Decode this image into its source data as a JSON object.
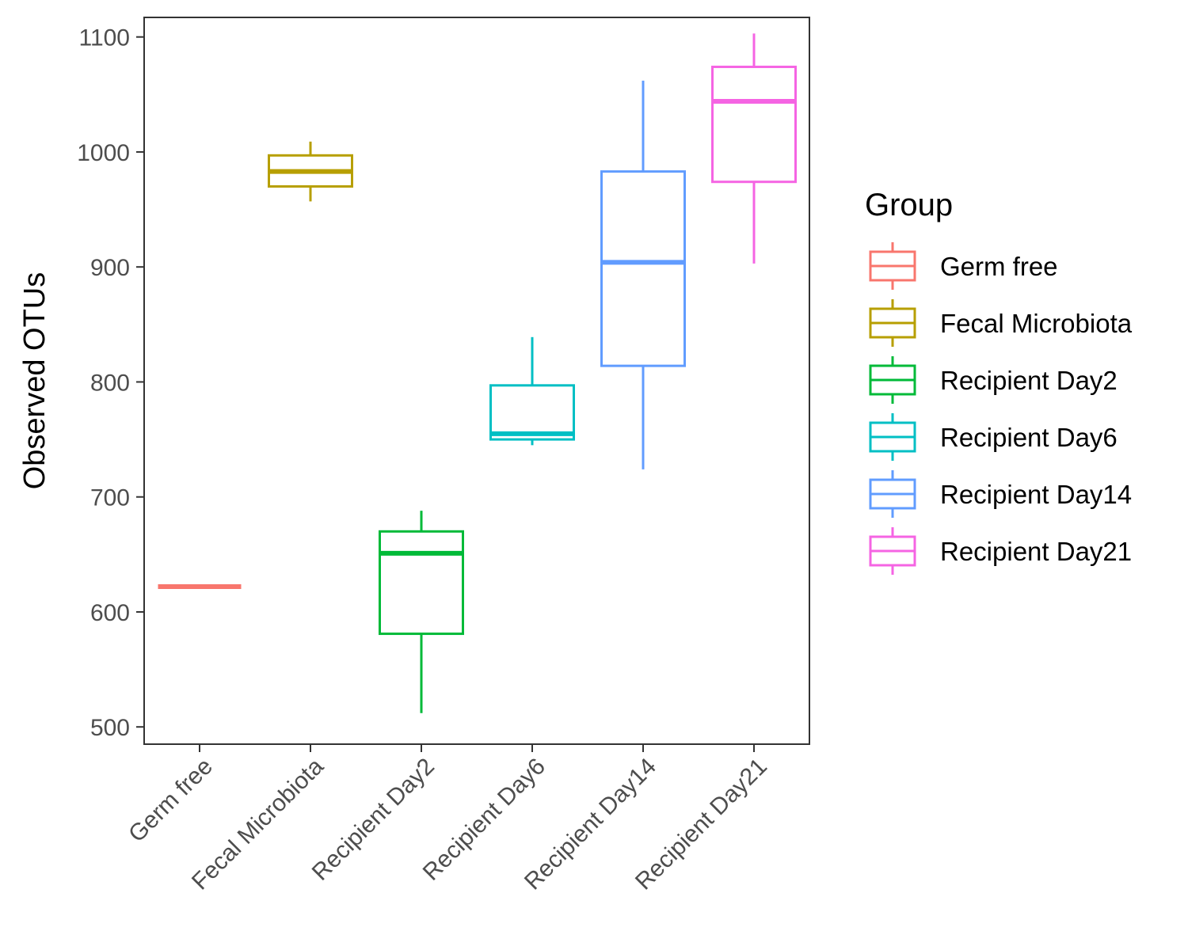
{
  "chart_data": {
    "type": "box",
    "title": "",
    "xlabel": "",
    "ylabel": "Observed OTUs",
    "ylim": [
      485,
      1117
    ],
    "yticks": [
      500,
      600,
      700,
      800,
      900,
      1000,
      1100
    ],
    "grid": false,
    "categories": [
      "Germ free",
      "Fecal Microbiota",
      "Recipient Day2",
      "Recipient Day6",
      "Recipient Day14",
      "Recipient Day21"
    ],
    "legend": {
      "title": "Group",
      "placement": "right",
      "entries": [
        "Germ free",
        "Fecal Microbiota",
        "Recipient Day2",
        "Recipient Day6",
        "Recipient Day14",
        "Recipient Day21"
      ]
    },
    "colors": [
      "#F8766D",
      "#B79F00",
      "#00BA38",
      "#00BFC4",
      "#619CFF",
      "#F564E3"
    ],
    "series": [
      {
        "category": "Germ free",
        "min": 622,
        "q1": 622,
        "median": 622,
        "q3": 622,
        "max": 622
      },
      {
        "category": "Fecal Microbiota",
        "min": 957,
        "q1": 970,
        "median": 983,
        "q3": 997,
        "max": 1009
      },
      {
        "category": "Recipient Day2",
        "min": 512,
        "q1": 581,
        "median": 651,
        "q3": 670,
        "max": 688
      },
      {
        "category": "Recipient Day6",
        "min": 745,
        "q1": 750,
        "median": 755,
        "q3": 797,
        "max": 839
      },
      {
        "category": "Recipient Day14",
        "min": 724,
        "q1": 814,
        "median": 904,
        "q3": 983,
        "max": 1062
      },
      {
        "category": "Recipient Day21",
        "min": 903,
        "q1": 974,
        "median": 1044,
        "q3": 1074,
        "max": 1103
      }
    ]
  }
}
